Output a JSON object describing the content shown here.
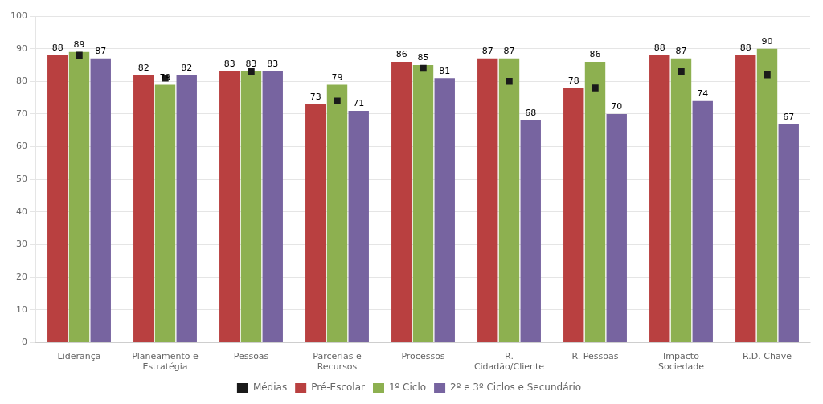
{
  "chart_data": {
    "type": "bar",
    "categories": [
      "Liderança",
      "Planeamento e\nEstratégia",
      "Pessoas",
      "Parcerias e\nRecursos",
      "Processos",
      "R.\nCidadão/Cliente",
      "R. Pessoas",
      "Impacto\nSociedade",
      "R.D. Chave"
    ],
    "series": [
      {
        "name": "Pré-Escolar",
        "color": "#B94040",
        "values": [
          88,
          82,
          83,
          73,
          86,
          87,
          78,
          88,
          88
        ]
      },
      {
        "name": "1º Ciclo",
        "color": "#8DB050",
        "values": [
          89,
          79,
          83,
          79,
          85,
          87,
          86,
          87,
          90
        ]
      },
      {
        "name": "2º e 3º Ciclos e Secundário",
        "color": "#7764A0",
        "values": [
          87,
          82,
          83,
          71,
          81,
          68,
          70,
          74,
          67
        ]
      },
      {
        "name": "Médias",
        "type": "scatter",
        "marker": "square",
        "color": "#1A1A1A",
        "values": [
          88,
          81,
          83,
          74,
          84,
          80,
          78,
          83,
          82
        ]
      }
    ],
    "ylim": [
      0,
      100
    ],
    "yticks": [
      0,
      10,
      20,
      30,
      40,
      50,
      60,
      70,
      80,
      90,
      100
    ],
    "grid": true,
    "legend": "bottom",
    "data_labels": true
  }
}
